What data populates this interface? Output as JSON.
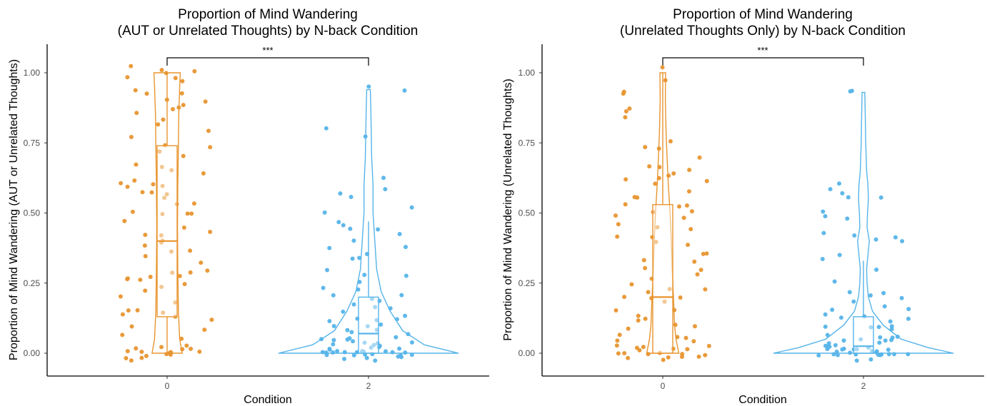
{
  "colors": {
    "cond0": "#E8952F",
    "cond2": "#56B4E9",
    "axis": "#000000",
    "tick_text": "#4d4d4d"
  },
  "chart_data": [
    {
      "type": "violin+box+jitter",
      "title_line1": "Proportion of Mind Wandering",
      "title_line2": "(AUT or Unrelated Thoughts) by N-back Condition",
      "xlabel": "Condition",
      "ylabel": "Proportion of Mind Wandering (AUT or Unrelated Thoughts)",
      "categories": [
        "0",
        "2"
      ],
      "yticks": [
        "0.00",
        "0.25",
        "0.50",
        "0.75",
        "1.00"
      ],
      "ylim": [
        -0.08,
        1.1
      ],
      "significance": "***",
      "groups": [
        {
          "category": "0",
          "color": "#E8952F",
          "box": {
            "min": 0.0,
            "q1": 0.13,
            "median": 0.4,
            "q3": 0.74,
            "max": 1.0
          },
          "violin": [
            [
              0.0,
              0.48
            ],
            [
              0.05,
              0.4
            ],
            [
              0.15,
              0.36
            ],
            [
              0.3,
              0.34
            ],
            [
              0.45,
              0.33
            ],
            [
              0.6,
              0.34
            ],
            [
              0.75,
              0.36
            ],
            [
              0.85,
              0.37
            ],
            [
              0.95,
              0.4
            ],
            [
              1.0,
              0.42
            ]
          ],
          "points": [
            1.0,
            1.02,
            1.01,
            0.99,
            0.98,
            0.93,
            0.92,
            0.9,
            0.88,
            0.87,
            0.85,
            0.8,
            0.77,
            0.73,
            0.72,
            0.7,
            0.68,
            0.66,
            0.65,
            0.62,
            0.6,
            0.6,
            0.58,
            0.55,
            0.53,
            0.5,
            0.5,
            0.49,
            0.47,
            0.45,
            0.43,
            0.42,
            0.4,
            0.4,
            0.38,
            0.36,
            0.35,
            0.33,
            0.3,
            0.29,
            0.28,
            0.27,
            0.26,
            0.25,
            0.23,
            0.2,
            0.18,
            0.16,
            0.15,
            0.13,
            0.1,
            0.08,
            0.06,
            0.03,
            0.02,
            0.01,
            0.01,
            0.0,
            0.0,
            0.0,
            -0.01,
            -0.01,
            -0.02,
            -0.02,
            1.0,
            0.93,
            0.87,
            0.81,
            0.74,
            0.61,
            0.6,
            0.58,
            0.5,
            0.42,
            0.27,
            0.26,
            0.15,
            0.14,
            0.02,
            0.01,
            0.0,
            -0.02,
            0.97,
            0.9,
            0.84,
            0.64,
            0.57,
            0.54,
            0.37,
            0.28,
            0.23,
            0.12,
            0.05,
            0.02
          ]
        },
        {
          "category": "2",
          "color": "#56B4E9",
          "box": {
            "min": 0.0,
            "q1": 0.0,
            "median": 0.07,
            "q3": 0.2,
            "max": 0.47
          },
          "violin": [
            [
              0.0,
              1.0
            ],
            [
              0.03,
              0.62
            ],
            [
              0.08,
              0.38
            ],
            [
              0.15,
              0.24
            ],
            [
              0.22,
              0.14
            ],
            [
              0.3,
              0.09
            ],
            [
              0.4,
              0.07
            ],
            [
              0.5,
              0.05
            ],
            [
              0.6,
              0.05
            ],
            [
              0.7,
              0.035
            ],
            [
              0.8,
              0.03
            ],
            [
              0.88,
              0.025
            ],
            [
              0.94,
              0.02
            ]
          ],
          "points": [
            0.95,
            0.94,
            0.8,
            0.78,
            0.62,
            0.58,
            0.57,
            0.55,
            0.52,
            0.5,
            0.47,
            0.46,
            0.45,
            0.44,
            0.42,
            0.4,
            0.38,
            0.37,
            0.35,
            0.34,
            0.33,
            0.3,
            0.28,
            0.27,
            0.25,
            0.22,
            0.21,
            0.2,
            0.19,
            0.17,
            0.16,
            0.15,
            0.14,
            0.13,
            0.12,
            0.11,
            0.1,
            0.09,
            0.08,
            0.07,
            0.07,
            0.06,
            0.05,
            0.05,
            0.04,
            0.04,
            0.03,
            0.03,
            0.02,
            0.02,
            0.02,
            0.01,
            0.01,
            0.01,
            0.01,
            0.0,
            0.0,
            0.0,
            0.0,
            0.0,
            -0.01,
            -0.01,
            -0.01,
            -0.02,
            -0.02,
            0.16,
            0.12,
            0.09,
            0.05,
            0.03,
            0.02,
            0.01,
            0.01,
            0.0,
            0.0,
            0.0,
            -0.01,
            -0.02,
            0.23,
            0.18,
            0.1,
            0.06,
            0.03,
            0.01,
            0.0,
            0.0,
            -0.01
          ]
        }
      ]
    },
    {
      "type": "violin+box+jitter",
      "title_line1": "Proportion of Mind Wandering",
      "title_line2": "(Unrelated Thoughts Only) by N-back Condition",
      "xlabel": "Condition",
      "ylabel": "Proportion of Mind Wandering (Unrelated Thoughts)",
      "categories": [
        "0",
        "2"
      ],
      "yticks": [
        "0.00",
        "0.25",
        "0.50",
        "0.75",
        "1.00"
      ],
      "ylim": [
        -0.08,
        1.1
      ],
      "significance": "***",
      "groups": [
        {
          "category": "0",
          "color": "#E8952F",
          "box": {
            "min": 0.0,
            "q1": 0.0,
            "median": 0.2,
            "q3": 0.53,
            "max": 1.0
          },
          "violin": [
            [
              0.0,
              0.75
            ],
            [
              0.05,
              0.62
            ],
            [
              0.1,
              0.55
            ],
            [
              0.2,
              0.5
            ],
            [
              0.3,
              0.44
            ],
            [
              0.4,
              0.4
            ],
            [
              0.5,
              0.34
            ],
            [
              0.6,
              0.26
            ],
            [
              0.7,
              0.2
            ],
            [
              0.8,
              0.15
            ],
            [
              0.9,
              0.12
            ],
            [
              1.0,
              0.13
            ]
          ],
          "points": [
            1.02,
            0.98,
            0.93,
            0.92,
            0.87,
            0.86,
            0.84,
            0.74,
            0.73,
            0.7,
            0.67,
            0.66,
            0.65,
            0.64,
            0.63,
            0.62,
            0.6,
            0.58,
            0.56,
            0.53,
            0.52,
            0.5,
            0.49,
            0.48,
            0.46,
            0.45,
            0.42,
            0.4,
            0.38,
            0.36,
            0.35,
            0.33,
            0.3,
            0.28,
            0.27,
            0.25,
            0.23,
            0.22,
            0.2,
            0.19,
            0.18,
            0.16,
            0.15,
            0.14,
            0.12,
            0.1,
            0.09,
            0.08,
            0.06,
            0.05,
            0.04,
            0.03,
            0.02,
            0.02,
            0.01,
            0.01,
            0.0,
            0.0,
            0.0,
            -0.01,
            -0.01,
            -0.02,
            -0.02,
            -0.02,
            0.76,
            0.62,
            0.55,
            0.52,
            0.44,
            0.41,
            0.31,
            0.22,
            0.12,
            0.05,
            0.01,
            0.0,
            -0.01,
            0.63,
            0.51,
            0.33,
            0.2,
            0.07,
            0.02,
            0.0
          ]
        },
        {
          "category": "2",
          "color": "#56B4E9",
          "box": {
            "min": 0.0,
            "q1": 0.0,
            "median": 0.025,
            "q3": 0.13,
            "max": 0.33
          },
          "violin": [
            [
              0.0,
              1.0
            ],
            [
              0.02,
              0.72
            ],
            [
              0.05,
              0.42
            ],
            [
              0.1,
              0.22
            ],
            [
              0.15,
              0.1
            ],
            [
              0.2,
              0.055
            ],
            [
              0.25,
              0.04
            ],
            [
              0.3,
              0.035
            ],
            [
              0.35,
              0.05
            ],
            [
              0.4,
              0.065
            ],
            [
              0.45,
              0.04
            ],
            [
              0.5,
              0.045
            ],
            [
              0.55,
              0.055
            ],
            [
              0.6,
              0.05
            ],
            [
              0.65,
              0.035
            ],
            [
              0.75,
              0.025
            ],
            [
              0.85,
              0.02
            ],
            [
              0.93,
              0.015
            ]
          ],
          "points": [
            0.93,
            0.93,
            0.6,
            0.58,
            0.57,
            0.55,
            0.55,
            0.5,
            0.49,
            0.48,
            0.43,
            0.42,
            0.42,
            0.4,
            0.4,
            0.35,
            0.33,
            0.3,
            0.26,
            0.22,
            0.22,
            0.21,
            0.2,
            0.19,
            0.17,
            0.15,
            0.14,
            0.13,
            0.12,
            0.11,
            0.1,
            0.09,
            0.08,
            0.07,
            0.06,
            0.05,
            0.05,
            0.04,
            0.04,
            0.03,
            0.03,
            0.02,
            0.02,
            0.02,
            0.01,
            0.01,
            0.01,
            0.01,
            0.0,
            0.0,
            0.0,
            0.0,
            0.0,
            -0.01,
            -0.01,
            -0.01,
            -0.02,
            -0.02,
            0.15,
            0.13,
            0.1,
            0.05,
            0.03,
            0.02,
            0.01,
            0.0,
            0.0,
            -0.01,
            0.09,
            0.06,
            0.04,
            0.02,
            0.01,
            0.0,
            -0.01
          ]
        }
      ]
    }
  ]
}
